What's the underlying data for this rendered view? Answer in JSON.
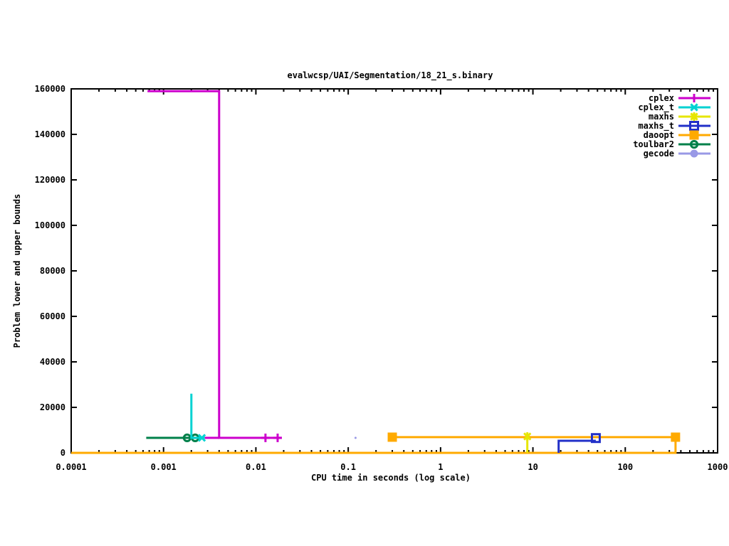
{
  "window": {
    "background": "#ffffff"
  },
  "chart_data": {
    "type": "line",
    "title": "evalwcsp/UAI/Segmentation/18_21_s.binary",
    "xlabel": "CPU time in seconds (log scale)",
    "ylabel": "Problem lower and upper bounds",
    "x_scale": "log",
    "grid": false,
    "xlim": [
      0.0001,
      1000
    ],
    "ylim": [
      0,
      160000
    ],
    "x_ticks": [
      0.0001,
      0.001,
      0.01,
      0.1,
      1,
      10,
      100,
      1000
    ],
    "x_tick_labels": [
      "0.0001",
      "0.001",
      "0.01",
      "0.1",
      "1",
      "10",
      "100",
      "1000"
    ],
    "y_ticks": [
      0,
      20000,
      40000,
      60000,
      80000,
      100000,
      120000,
      140000,
      160000
    ],
    "y_tick_labels": [
      "0",
      "20000",
      "40000",
      "60000",
      "80000",
      "100000",
      "120000",
      "140000",
      "160000"
    ],
    "axis_color": "#000000",
    "legend": {
      "position": "top-right",
      "entries": [
        "cplex",
        "cplex_t",
        "maxhs",
        "maxhs_t",
        "daoopt",
        "toulbar2",
        "gecode"
      ]
    },
    "series": [
      {
        "name": "cplex",
        "color": "#CC00CC",
        "marker": "plus",
        "segments": [
          [
            [
              0.00067,
              159000
            ],
            [
              0.004,
              159000
            ],
            [
              0.004,
              6600
            ],
            [
              0.019,
              6600
            ]
          ],
          [
            [
              0.0028,
              6600
            ],
            [
              0.004,
              6600
            ]
          ]
        ],
        "markers": [
          [
            0.0127,
            6600
          ],
          [
            0.0172,
            6600
          ]
        ]
      },
      {
        "name": "cplex_t",
        "color": "#00D2D2",
        "marker": "cross",
        "segments": [
          [
            [
              0.002,
              26000
            ],
            [
              0.002,
              6600
            ],
            [
              0.0028,
              6600
            ]
          ]
        ],
        "markers": [
          [
            0.0026,
            6600
          ]
        ]
      },
      {
        "name": "maxhs",
        "color": "#E6E600",
        "marker": "asterisk",
        "segments": [
          [
            [
              8.7,
              0
            ],
            [
              8.7,
              7200
            ]
          ]
        ],
        "markers": [
          [
            8.7,
            7200
          ]
        ]
      },
      {
        "name": "maxhs_t",
        "color": "#2230C8",
        "marker": "square-open",
        "segments": [
          [
            [
              19,
              0
            ],
            [
              19,
              5300
            ],
            [
              48,
              5300
            ]
          ]
        ],
        "markers": [
          [
            48,
            6500
          ]
        ]
      },
      {
        "name": "daoopt",
        "color": "#FFAA00",
        "marker": "square-filled",
        "segments": [
          [
            [
              0.0001,
              0
            ],
            [
              350,
              0
            ],
            [
              350,
              6900
            ]
          ],
          [
            [
              0.3,
              6900
            ],
            [
              350,
              6900
            ]
          ]
        ],
        "markers": [
          [
            0.3,
            6900
          ],
          [
            350,
            6900
          ]
        ]
      },
      {
        "name": "toulbar2",
        "color": "#00804A",
        "marker": "circle-open",
        "segments": [
          [
            [
              0.00065,
              6600
            ],
            [
              0.0024,
              6600
            ]
          ]
        ],
        "markers": [
          [
            0.0018,
            6600
          ],
          [
            0.0022,
            6600
          ]
        ]
      },
      {
        "name": "gecode",
        "color": "#9999E6",
        "marker": "circle-filled",
        "data_marker_scale": 0.27,
        "segments": [],
        "markers": [
          [
            0.12,
            6600
          ]
        ]
      }
    ]
  }
}
